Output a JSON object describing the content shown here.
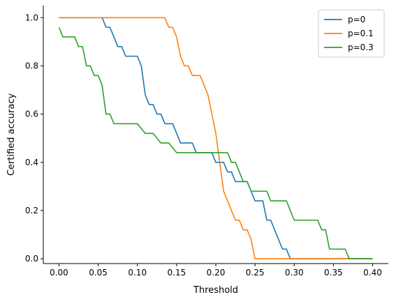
{
  "chart_data": {
    "type": "line",
    "title": "",
    "xlabel": "Threshold",
    "ylabel": "Certified accuracy",
    "xlim": [
      -0.02,
      0.42
    ],
    "ylim": [
      -0.02,
      1.05
    ],
    "xticks": [
      0.0,
      0.05,
      0.1,
      0.15,
      0.2,
      0.25,
      0.3,
      0.35,
      0.4
    ],
    "xtick_labels": [
      "0.00",
      "0.05",
      "0.10",
      "0.15",
      "0.20",
      "0.25",
      "0.30",
      "0.35",
      "0.40"
    ],
    "yticks": [
      0.0,
      0.2,
      0.4,
      0.6,
      0.8,
      1.0
    ],
    "ytick_labels": [
      "0.0",
      "0.2",
      "0.4",
      "0.6",
      "0.8",
      "1.0"
    ],
    "grid": false,
    "legend_position": "top-right",
    "series": [
      {
        "name": "p=0",
        "color": "#1f77b4",
        "x": [
          0.0,
          0.055,
          0.06,
          0.065,
          0.07,
          0.075,
          0.08,
          0.085,
          0.09,
          0.095,
          0.1,
          0.105,
          0.11,
          0.115,
          0.12,
          0.125,
          0.13,
          0.135,
          0.14,
          0.145,
          0.15,
          0.155,
          0.16,
          0.165,
          0.17,
          0.175,
          0.18,
          0.185,
          0.19,
          0.195,
          0.2,
          0.205,
          0.21,
          0.215,
          0.22,
          0.225,
          0.23,
          0.235,
          0.24,
          0.245,
          0.25,
          0.255,
          0.26,
          0.265,
          0.27,
          0.275,
          0.28,
          0.285,
          0.29,
          0.295,
          0.3,
          0.35,
          0.4
        ],
        "y": [
          1.0,
          1.0,
          0.96,
          0.96,
          0.92,
          0.88,
          0.88,
          0.84,
          0.84,
          0.84,
          0.84,
          0.8,
          0.68,
          0.64,
          0.64,
          0.6,
          0.6,
          0.56,
          0.56,
          0.56,
          0.52,
          0.48,
          0.48,
          0.48,
          0.48,
          0.44,
          0.44,
          0.44,
          0.44,
          0.44,
          0.4,
          0.4,
          0.4,
          0.36,
          0.36,
          0.32,
          0.32,
          0.32,
          0.32,
          0.28,
          0.24,
          0.24,
          0.24,
          0.16,
          0.16,
          0.12,
          0.08,
          0.04,
          0.04,
          0.0,
          0.0,
          0.0,
          0.0
        ]
      },
      {
        "name": "p=0.1",
        "color": "#ff7f0e",
        "x": [
          0.0,
          0.05,
          0.1,
          0.135,
          0.14,
          0.145,
          0.15,
          0.155,
          0.16,
          0.165,
          0.17,
          0.175,
          0.18,
          0.185,
          0.19,
          0.195,
          0.2,
          0.205,
          0.21,
          0.215,
          0.22,
          0.225,
          0.23,
          0.235,
          0.24,
          0.245,
          0.25,
          0.26,
          0.3,
          0.35,
          0.4
        ],
        "y": [
          1.0,
          1.0,
          1.0,
          1.0,
          0.96,
          0.96,
          0.92,
          0.84,
          0.8,
          0.8,
          0.76,
          0.76,
          0.76,
          0.72,
          0.68,
          0.6,
          0.52,
          0.4,
          0.28,
          0.24,
          0.2,
          0.16,
          0.16,
          0.12,
          0.12,
          0.08,
          0.0,
          0.0,
          0.0,
          0.0,
          0.0
        ]
      },
      {
        "name": "p=0.3",
        "color": "#2ca02c",
        "x": [
          0.0,
          0.005,
          0.01,
          0.02,
          0.025,
          0.03,
          0.035,
          0.04,
          0.045,
          0.05,
          0.055,
          0.06,
          0.065,
          0.07,
          0.08,
          0.09,
          0.1,
          0.11,
          0.12,
          0.13,
          0.14,
          0.15,
          0.16,
          0.17,
          0.18,
          0.19,
          0.2,
          0.205,
          0.21,
          0.215,
          0.22,
          0.225,
          0.23,
          0.235,
          0.24,
          0.245,
          0.25,
          0.255,
          0.26,
          0.265,
          0.27,
          0.275,
          0.28,
          0.285,
          0.29,
          0.295,
          0.3,
          0.305,
          0.31,
          0.315,
          0.32,
          0.325,
          0.33,
          0.335,
          0.34,
          0.345,
          0.35,
          0.355,
          0.36,
          0.365,
          0.37,
          0.375,
          0.38,
          0.4
        ],
        "y": [
          0.96,
          0.92,
          0.92,
          0.92,
          0.88,
          0.88,
          0.8,
          0.8,
          0.76,
          0.76,
          0.72,
          0.6,
          0.6,
          0.56,
          0.56,
          0.56,
          0.56,
          0.52,
          0.52,
          0.48,
          0.48,
          0.44,
          0.44,
          0.44,
          0.44,
          0.44,
          0.44,
          0.44,
          0.44,
          0.44,
          0.4,
          0.4,
          0.36,
          0.32,
          0.32,
          0.28,
          0.28,
          0.28,
          0.28,
          0.28,
          0.24,
          0.24,
          0.24,
          0.24,
          0.24,
          0.2,
          0.16,
          0.16,
          0.16,
          0.16,
          0.16,
          0.16,
          0.16,
          0.12,
          0.12,
          0.04,
          0.04,
          0.04,
          0.04,
          0.04,
          0.0,
          0.0,
          0.0,
          0.0
        ]
      }
    ]
  }
}
